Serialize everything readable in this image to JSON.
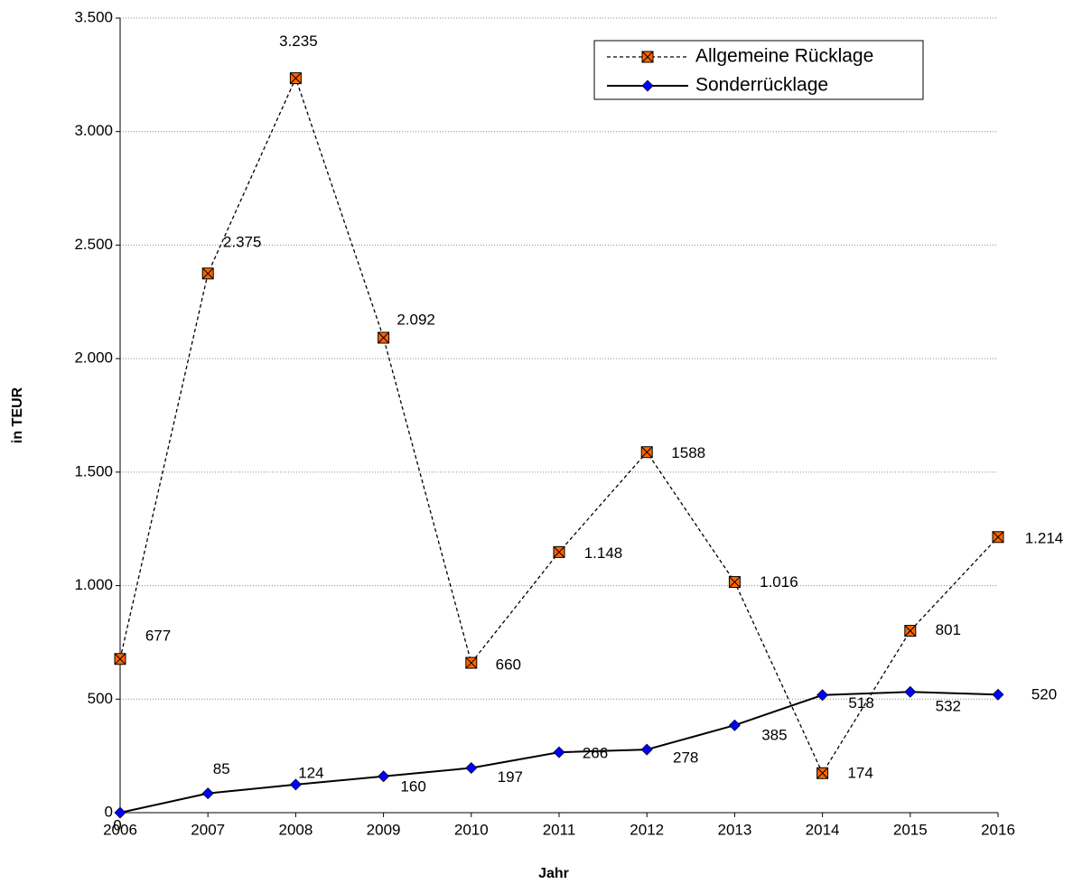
{
  "chart_data": {
    "type": "line",
    "xlabel": "Jahr",
    "ylabel": "in TEUR",
    "categories": [
      "2006",
      "2007",
      "2008",
      "2009",
      "2010",
      "2011",
      "2012",
      "2013",
      "2014",
      "2015",
      "2016"
    ],
    "series": [
      {
        "name": "Allgemeine Rücklage",
        "color": "#ff6600",
        "line_style": "dashed",
        "marker": "square-x",
        "values": [
          677,
          2375,
          3235,
          2092,
          660,
          1148,
          1588,
          1016,
          174,
          801,
          1214
        ],
        "value_labels": [
          "677",
          "2.375",
          "3.235",
          "2.092",
          "660",
          "1.148",
          "1588",
          "1.016",
          "174",
          "801",
          "1.214"
        ]
      },
      {
        "name": "Sonderrücklage",
        "color": "#0000ff",
        "line_style": "solid",
        "marker": "diamond",
        "values": [
          0,
          85,
          124,
          160,
          197,
          266,
          278,
          385,
          518,
          532,
          520
        ]
      }
    ],
    "ylim": [
      0,
      3500
    ],
    "yticks": [
      0,
      500,
      {
        "value": 1000,
        "label": "1.000"
      },
      {
        "value": 1500,
        "label": "1.500"
      },
      {
        "value": 2000,
        "label": "2.000"
      },
      {
        "value": 2500,
        "label": "2.500"
      },
      {
        "value": 3000,
        "label": "3.000"
      },
      {
        "value": 3500,
        "label": "3.500"
      }
    ],
    "grid": true,
    "legend": "top-right"
  }
}
